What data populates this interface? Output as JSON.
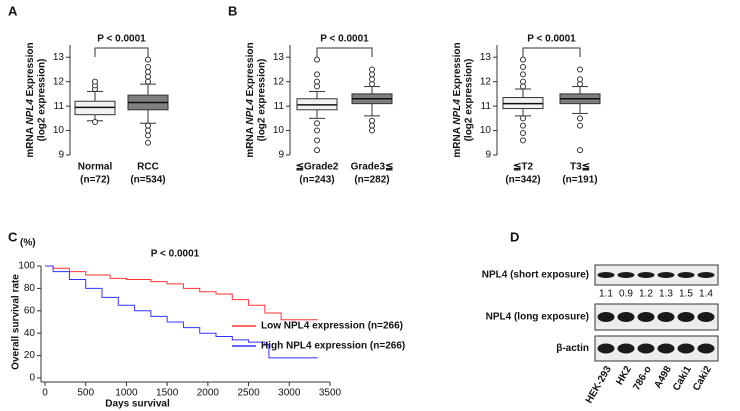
{
  "chart_data": [
    {
      "type": "box",
      "panel_label": "A",
      "ylabel": [
        "mRNA ",
        "NPL4",
        " Expression"
      ],
      "ylabel2": "(log2 expression)",
      "annotation": "P < 0.0001",
      "categories": [
        "Normal",
        "RCC"
      ],
      "category_notes": [
        "(n=72)",
        "(n=534)"
      ],
      "colors": [
        "#f2f2f2",
        "#7f7f7f"
      ],
      "boxes": [
        {
          "whislo": 10.4,
          "q1": 10.65,
          "med": 10.95,
          "q3": 11.2,
          "whishi": 11.6,
          "fliers": [
            11.7,
            11.85,
            12.0,
            10.35
          ]
        },
        {
          "whislo": 10.3,
          "q1": 10.85,
          "med": 11.15,
          "q3": 11.45,
          "whishi": 11.9,
          "fliers": [
            12.0,
            12.2,
            12.4,
            12.6,
            12.9,
            10.2,
            10.0,
            9.8,
            9.5
          ]
        }
      ],
      "ylim": [
        9,
        13.5
      ],
      "yticks": [
        9,
        10,
        11,
        12,
        13
      ]
    },
    {
      "type": "box",
      "panel_label": "B",
      "ylabel": [
        "mRNA ",
        "NPL4",
        " Expression"
      ],
      "ylabel2": "(log2 expression)",
      "annotation": "P < 0.0001",
      "categories": [
        "≦Grade2",
        "Grade3≦"
      ],
      "category_notes": [
        "(n=243)",
        "(n=282)"
      ],
      "colors": [
        "#f2f2f2",
        "#7f7f7f"
      ],
      "boxes": [
        {
          "whislo": 10.5,
          "q1": 10.85,
          "med": 11.05,
          "q3": 11.3,
          "whishi": 11.6,
          "fliers": [
            11.8,
            12.0,
            12.3,
            12.9,
            10.3,
            10.0,
            9.6,
            9.2
          ]
        },
        {
          "whislo": 10.6,
          "q1": 11.1,
          "med": 11.3,
          "q3": 11.5,
          "whishi": 11.8,
          "fliers": [
            11.9,
            12.1,
            12.3,
            12.5,
            10.4,
            10.2,
            10.0
          ]
        }
      ],
      "ylim": [
        9,
        13.5
      ],
      "yticks": [
        9,
        10,
        11,
        12,
        13
      ]
    },
    {
      "type": "box",
      "ylabel": [
        "mRNA ",
        "NPL4",
        " Expression"
      ],
      "ylabel2": "(log2 expression)",
      "annotation": "P < 0.0001",
      "categories": [
        "≦T2",
        "T3≦"
      ],
      "category_notes": [
        "(n=342)",
        "(n=191)"
      ],
      "colors": [
        "#f2f2f2",
        "#7f7f7f"
      ],
      "boxes": [
        {
          "whislo": 10.6,
          "q1": 10.9,
          "med": 11.1,
          "q3": 11.35,
          "whishi": 11.7,
          "fliers": [
            11.8,
            12.0,
            12.3,
            12.6,
            12.9,
            10.5,
            10.2,
            9.9,
            9.6
          ]
        },
        {
          "whislo": 10.7,
          "q1": 11.1,
          "med": 11.3,
          "q3": 11.5,
          "whishi": 11.8,
          "fliers": [
            11.9,
            12.1,
            12.5,
            10.5,
            10.2,
            9.2
          ]
        }
      ],
      "ylim": [
        9,
        13.5
      ],
      "yticks": [
        9,
        10,
        11,
        12,
        13
      ]
    },
    {
      "type": "survival",
      "panel_label": "C",
      "ylabel": "Overall survival rate",
      "yunit": "(%)",
      "xlabel": "Days survival",
      "annotation": "P < 0.0001",
      "series": [
        {
          "name": "Low NPL4 expression (n=266)",
          "color": "#ff3333",
          "x": [
            0,
            100,
            300,
            500,
            800,
            1000,
            1300,
            1500,
            1700,
            1900,
            2100,
            2300,
            2500,
            2700,
            2900,
            3350
          ],
          "values": [
            100,
            98,
            95,
            92,
            89,
            88,
            86,
            84,
            80,
            77,
            75,
            70,
            65,
            58,
            52,
            52
          ]
        },
        {
          "name": "High NPL4 expression (n=266)",
          "color": "#3333ff",
          "x": [
            0,
            100,
            300,
            500,
            700,
            900,
            1100,
            1300,
            1500,
            1700,
            1900,
            2100,
            2300,
            2500,
            2700,
            2750,
            3350
          ],
          "values": [
            100,
            95,
            88,
            80,
            72,
            65,
            60,
            55,
            50,
            45,
            40,
            37,
            34,
            32,
            30,
            18,
            18
          ]
        }
      ],
      "xlim": [
        0,
        3500
      ],
      "xticks": [
        0,
        500,
        1000,
        1500,
        2000,
        2500,
        3000,
        3500
      ],
      "ylim": [
        0,
        100
      ],
      "yticks": [
        0,
        20,
        40,
        60,
        80,
        100
      ]
    }
  ],
  "blot": {
    "panel_label": "D",
    "rows": [
      "NPL4 (short exposure)",
      "NPL4 (long exposure)",
      "β-actin"
    ],
    "lanes": [
      "HEK-293",
      "HK2",
      "786-o",
      "A498",
      "Caki1",
      "Caki2"
    ],
    "ratios": [
      1.1,
      0.9,
      1.2,
      1.3,
      1.5,
      1.4
    ]
  }
}
